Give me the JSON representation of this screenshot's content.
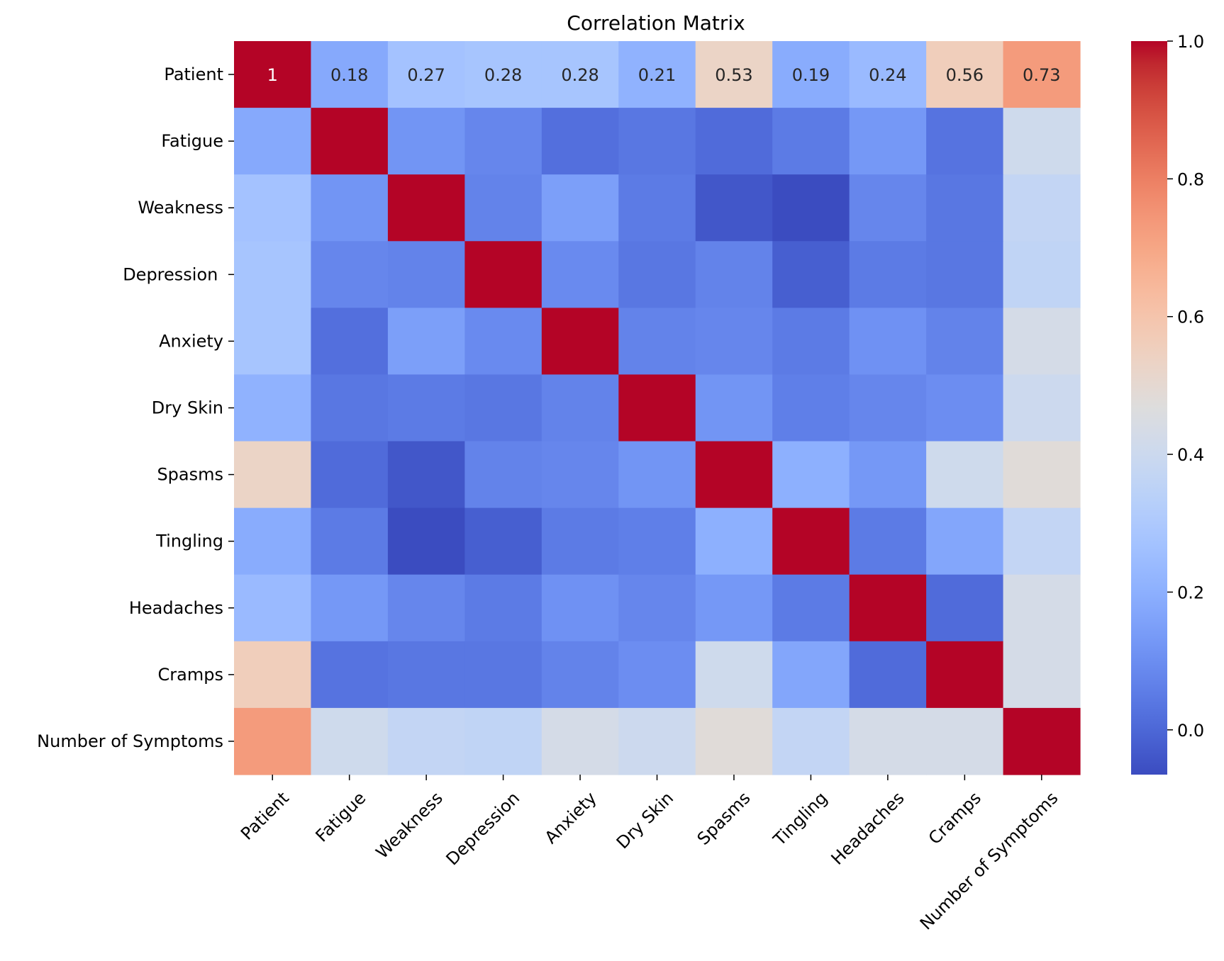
{
  "chart_data": {
    "type": "heatmap",
    "title": "Correlation Matrix",
    "xlabel": "",
    "ylabel": "",
    "colormap": "coolwarm",
    "color_range": [
      -0.065,
      1.0
    ],
    "colorbar": {
      "ticks": [
        0.0,
        0.2,
        0.4,
        0.6,
        0.8,
        1.0
      ],
      "tick_labels": [
        "0.0",
        "0.2",
        "0.4",
        "0.6",
        "0.8",
        "1.0"
      ],
      "placement": "right"
    },
    "row_labels": [
      "Patient",
      "Fatigue",
      "Weakness",
      "Depression ",
      "Anxiety",
      "Dry Skin",
      "Spasms",
      "Tingling",
      "Headaches",
      "Cramps",
      "Number of Symptoms"
    ],
    "col_labels": [
      "Patient",
      "Fatigue",
      "Weakness",
      "Depression",
      "Anxiety",
      "Dry Skin",
      "Spasms",
      "Tingling",
      "Headaches",
      "Cramps",
      "Number of Symptoms"
    ],
    "values": [
      [
        1.0,
        0.18,
        0.27,
        0.28,
        0.28,
        0.21,
        0.53,
        0.19,
        0.24,
        0.56,
        0.73
      ],
      [
        0.18,
        1.0,
        0.12,
        0.08,
        0.02,
        0.04,
        0.01,
        0.05,
        0.13,
        0.03,
        0.41
      ],
      [
        0.27,
        0.12,
        1.0,
        0.07,
        0.15,
        0.05,
        -0.04,
        -0.065,
        0.08,
        0.04,
        0.37
      ],
      [
        0.28,
        0.08,
        0.07,
        1.0,
        0.09,
        0.04,
        0.07,
        -0.02,
        0.05,
        0.04,
        0.36
      ],
      [
        0.28,
        0.02,
        0.15,
        0.09,
        1.0,
        0.07,
        0.08,
        0.05,
        0.11,
        0.07,
        0.43
      ],
      [
        0.21,
        0.04,
        0.05,
        0.04,
        0.07,
        1.0,
        0.12,
        0.06,
        0.08,
        0.1,
        0.4
      ],
      [
        0.53,
        0.01,
        -0.04,
        0.07,
        0.08,
        0.12,
        1.0,
        0.2,
        0.13,
        0.41,
        0.48
      ],
      [
        0.19,
        0.05,
        -0.065,
        -0.02,
        0.05,
        0.06,
        0.2,
        1.0,
        0.05,
        0.17,
        0.37
      ],
      [
        0.24,
        0.13,
        0.08,
        0.05,
        0.11,
        0.08,
        0.13,
        0.05,
        1.0,
        0.01,
        0.43
      ],
      [
        0.56,
        0.03,
        0.04,
        0.04,
        0.07,
        0.1,
        0.41,
        0.17,
        0.01,
        1.0,
        0.43
      ],
      [
        0.73,
        0.41,
        0.37,
        0.36,
        0.43,
        0.4,
        0.48,
        0.37,
        0.43,
        0.43,
        1.0
      ]
    ],
    "annotations": {
      "row": 0,
      "labels": [
        "1",
        "0.18",
        "0.27",
        "0.28",
        "0.28",
        "0.21",
        "0.53",
        "0.19",
        "0.24",
        "0.56",
        "0.73"
      ]
    },
    "x_tick_rotation_deg": 45
  }
}
